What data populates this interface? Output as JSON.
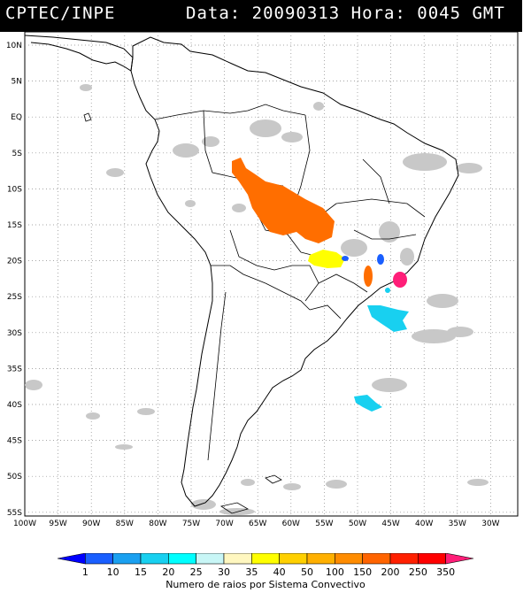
{
  "header": {
    "organization": "CPTEC/INPE",
    "data_label": "Data:",
    "date": "20090313",
    "hora_label": "Hora:",
    "time": "0045 GMT"
  },
  "map": {
    "lat_labels": [
      "10N",
      "5N",
      "EQ",
      "5S",
      "10S",
      "15S",
      "20S",
      "25S",
      "30S",
      "35S",
      "40S",
      "45S",
      "50S",
      "55S"
    ],
    "lon_labels": [
      "100W",
      "95W",
      "90W",
      "85W",
      "80W",
      "75W",
      "70W",
      "65W",
      "60W",
      "55W",
      "50W",
      "45W",
      "40W",
      "35W",
      "30W"
    ],
    "grid": "dotted"
  },
  "colorbar": {
    "title": "Numero de raios por Sistema Convectivo",
    "ticks": [
      "1",
      "10",
      "15",
      "20",
      "25",
      "30",
      "35",
      "40",
      "50",
      "100",
      "150",
      "200",
      "250",
      "350"
    ],
    "colors": [
      "#0000ff",
      "#1a5fff",
      "#1aa0f0",
      "#18d0f0",
      "#00ffff",
      "#c8f6f6",
      "#fff7c0",
      "#ffff00",
      "#ffd000",
      "#ffb000",
      "#ff8c00",
      "#ff6400",
      "#ff2000",
      "#ff0000",
      "#ff1e78"
    ]
  },
  "systems": [
    {
      "color": "#ff6e00",
      "label_group": "orange"
    },
    {
      "color": "#ffff00",
      "label_group": "yellow"
    },
    {
      "color": "#18d0f0",
      "label_group": "cyan"
    },
    {
      "color": "#ff1e78",
      "label_group": "magenta"
    },
    {
      "color": "#1a5fff",
      "label_group": "blue"
    }
  ]
}
